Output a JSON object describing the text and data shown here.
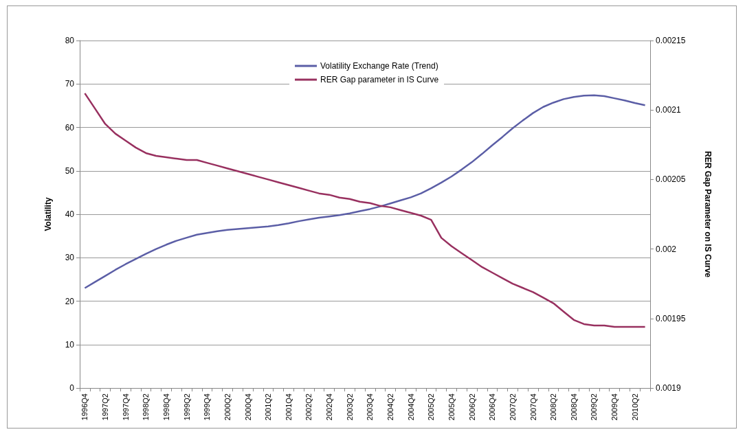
{
  "chart_data": {
    "type": "line",
    "categories": [
      "1996Q4",
      null,
      "1997Q2",
      null,
      "1997Q4",
      null,
      "1998Q2",
      null,
      "1998Q4",
      null,
      "1999Q2",
      null,
      "1999Q4",
      null,
      "2000Q2",
      null,
      "2000Q4",
      null,
      "2001Q2",
      null,
      "2001Q4",
      null,
      "2002Q2",
      null,
      "2002Q4",
      null,
      "2003Q2",
      null,
      "2003Q4",
      null,
      "2004Q2",
      null,
      "2004Q4",
      null,
      "2005Q2",
      null,
      "2005Q4",
      null,
      "2006Q2",
      null,
      "2006Q4",
      null,
      "2007Q2",
      null,
      "2007Q4",
      null,
      "2008Q2",
      null,
      "2008Q4",
      null,
      "2009Q2",
      null,
      "2009Q4",
      null,
      "2010Q2",
      null
    ],
    "ylabel": "Volatility",
    "y2label": "RER Gap Parameter on IS Curve",
    "ylim": [
      0,
      80
    ],
    "yticks": [
      0,
      10,
      20,
      30,
      40,
      50,
      60,
      70,
      80
    ],
    "y2lim": [
      0.0019,
      0.00215
    ],
    "y2ticks": [
      0.0019,
      0.00195,
      0.002,
      0.00205,
      0.0021,
      0.00215
    ],
    "grid": "y",
    "legend": "top",
    "marker": "none",
    "line_style": "solid",
    "series": [
      {
        "name": "Volatility Exchange Rate (Trend)",
        "color": "#5b5ea6",
        "values": [
          23.0,
          24.4,
          25.8,
          27.2,
          28.5,
          29.7,
          30.9,
          32.0,
          33.0,
          33.9,
          34.6,
          35.3,
          35.7,
          36.1,
          36.4,
          36.6,
          36.8,
          37.0,
          37.2,
          37.5,
          37.9,
          38.4,
          38.8,
          39.2,
          39.5,
          39.8,
          40.2,
          40.7,
          41.2,
          41.8,
          42.5,
          43.2,
          43.9,
          44.8,
          46.0,
          47.3,
          48.7,
          50.3,
          52.0,
          53.9,
          55.9,
          57.8,
          59.8,
          61.6,
          63.3,
          64.7,
          65.7,
          66.5,
          67.0,
          67.3,
          67.4,
          67.2,
          66.7,
          66.2,
          65.6,
          65.1
        ]
      },
      {
        "name": "RER Gap parameter in IS Curve",
        "color": "#98305f",
        "axis": "y2",
        "values": [
          0.002112,
          0.002101,
          0.00209,
          0.002083,
          0.002078,
          0.002073,
          0.002069,
          0.002067,
          0.002066,
          0.002065,
          0.002064,
          0.002064,
          0.002062,
          0.00206,
          0.002058,
          0.002056,
          0.002054,
          0.002052,
          0.00205,
          0.002048,
          0.002046,
          0.002044,
          0.002042,
          0.00204,
          0.002039,
          0.002037,
          0.002036,
          0.002034,
          0.002033,
          0.002031,
          0.00203,
          0.002028,
          0.002026,
          0.002024,
          0.002021,
          0.002008,
          0.002002,
          0.001997,
          0.001992,
          0.001987,
          0.001983,
          0.001979,
          0.001975,
          0.001972,
          0.001969,
          0.001965,
          0.001961,
          0.001955,
          0.001949,
          0.001946,
          0.001945,
          0.001945,
          0.001944,
          0.001944,
          0.001944,
          0.001944
        ]
      }
    ]
  }
}
